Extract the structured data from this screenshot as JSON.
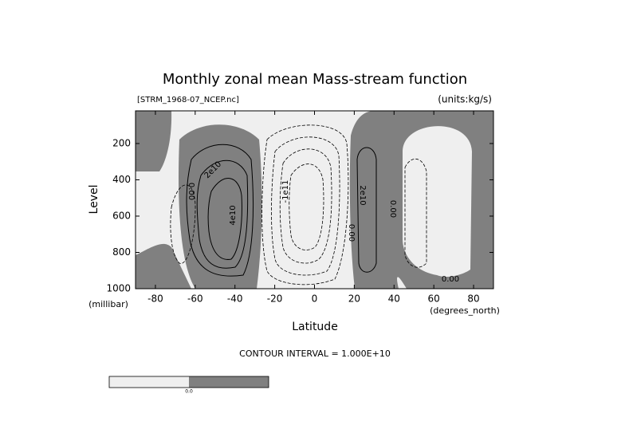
{
  "chart_data": {
    "type": "contour",
    "title": "Monthly zonal mean Mass-stream function",
    "file_label": "[STRM_1968-07_NCEP.nc]",
    "units_label": "(units:kg/s)",
    "xlabel": "Latitude",
    "xunits": "(degrees_north)",
    "ylabel": "Level",
    "yunits": "(millibar)",
    "xlim": [
      -90,
      90
    ],
    "xticks": [
      -80,
      -60,
      -40,
      -20,
      0,
      20,
      40,
      60,
      80
    ],
    "ylim": [
      1000,
      20
    ],
    "yticks": [
      200,
      400,
      600,
      800,
      1000
    ],
    "contour_labels": [
      "2e10",
      "4e10",
      "0.00",
      "-1e11",
      "2e10",
      "0.00",
      "0.00",
      "0.00"
    ],
    "contour_interval_label": "CONTOUR INTERVAL = 1.000E+10",
    "colorbar_labels": [
      "0.0"
    ],
    "colors": {
      "positive": "#808080",
      "negative": "#efefef"
    }
  }
}
